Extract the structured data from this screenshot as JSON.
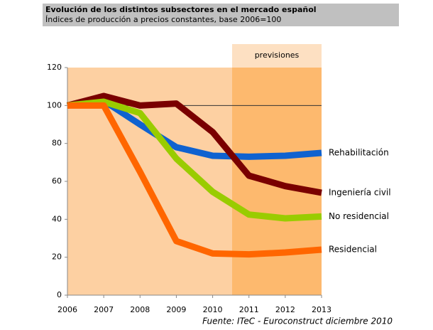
{
  "chart_data": {
    "type": "line",
    "title": "Evolución de los distintos subsectores en el mercado español",
    "subtitle": "Índices de producción a precios constantes, base 2006=100",
    "forecast_label": "previsiones",
    "source": "Fuente: ITeC - Euroconstruct diciembre 2010",
    "x": [
      2006,
      2007,
      2008,
      2009,
      2010,
      2011,
      2012,
      2013
    ],
    "xlim": [
      2006,
      2013
    ],
    "xticks": [
      2006,
      2007,
      2008,
      2009,
      2010,
      2011,
      2012,
      2013
    ],
    "ylim": [
      0,
      120
    ],
    "yticks": [
      0,
      20,
      40,
      60,
      80,
      100,
      120
    ],
    "reference_line": 100,
    "series": [
      {
        "name": "Rehabilitación",
        "color": "#0f62d0",
        "values": [
          100,
          102.5,
          90,
          78,
          73.5,
          73,
          73.5,
          75
        ]
      },
      {
        "name": "Ingeniería civil",
        "color": "#7a0000",
        "values": [
          100,
          105,
          100,
          101,
          86,
          63,
          57.5,
          54
        ]
      },
      {
        "name": "No residencial",
        "color": "#99cc00",
        "values": [
          100,
          102,
          96,
          72,
          54.5,
          42.5,
          40.5,
          41.5
        ]
      },
      {
        "name": "Residencial",
        "color": "#ff6600",
        "values": [
          100,
          100,
          65,
          28.5,
          22,
          21.5,
          22.5,
          24
        ]
      }
    ]
  }
}
